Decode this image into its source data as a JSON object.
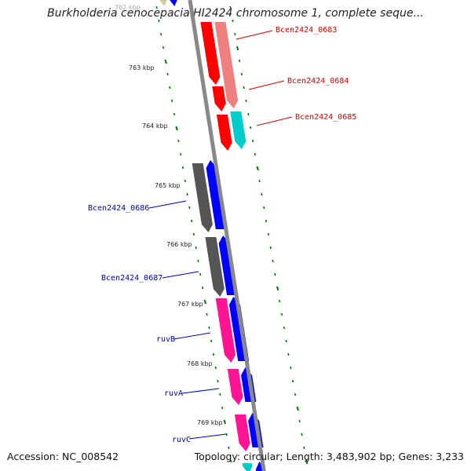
{
  "title": "Burkholderia cenocepacia HI2424 chromosome 1, complete seque...",
  "footer": {
    "accession": "Accession: NC_008542",
    "summary": "Topology: circular; Length: 3,483,902 bp; Genes: 3,233"
  },
  "colors": {
    "backbone": "#888888",
    "tick": "#007700",
    "red_gene": "#ff0000",
    "salmon_gene": "#f08080",
    "cyan_gene": "#00cccc",
    "gray_gene": "#555555",
    "blue_gene": "#0000ff",
    "pink_gene": "#ff1493",
    "olive_gene": "#cccc99",
    "label_red": "#dd0000",
    "label_blue": "#0000bb"
  },
  "kbp_labels": [
    {
      "text": "762 kbp",
      "faded": true
    },
    {
      "text": "763 kbp",
      "faded": false
    },
    {
      "text": "764 kbp",
      "faded": false
    },
    {
      "text": "765 kbp",
      "faded": false
    },
    {
      "text": "766 kbp",
      "faded": false
    },
    {
      "text": "767 kbp",
      "faded": false
    },
    {
      "text": "768 kbp",
      "faded": false
    },
    {
      "text": "769 kbp",
      "faded": false
    }
  ],
  "gene_labels_right": [
    {
      "name": "Bcen2424_0683",
      "color": "#dd0000"
    },
    {
      "name": "Bcen2424_0684",
      "color": "#dd0000"
    },
    {
      "name": "Bcen2424_0685",
      "color": "#dd0000"
    }
  ],
  "gene_labels_left": [
    {
      "name": "Bcen2424_0686",
      "color": "#0000bb"
    },
    {
      "name": "Bcen2424_0687",
      "color": "#0000bb"
    },
    {
      "name": "ruvB",
      "color": "#0000bb"
    },
    {
      "name": "ruvA",
      "color": "#0000bb"
    },
    {
      "name": "ruvC",
      "color": "#0000bb"
    }
  ]
}
